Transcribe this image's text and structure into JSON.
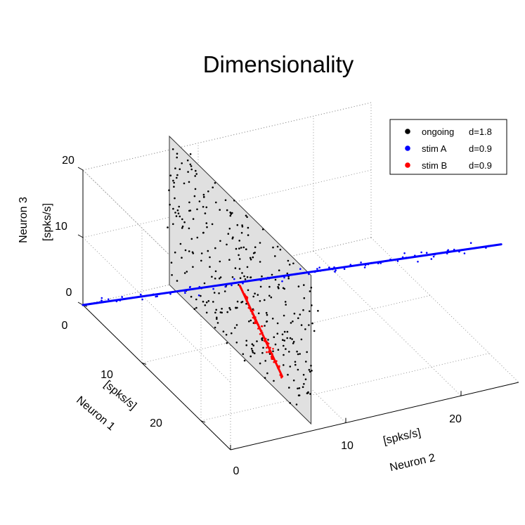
{
  "chart_data": {
    "type": "scatter",
    "title": "Dimensionality",
    "axes": {
      "x": {
        "label": "Neuron 1",
        "unit": "[spks/s]",
        "range": [
          0,
          25
        ],
        "ticks": [
          0,
          10,
          20
        ],
        "tick_labels": [
          "0",
          "10",
          "20"
        ]
      },
      "y": {
        "label": "Neuron 2",
        "unit": "[spks/s]",
        "range": [
          0,
          25
        ],
        "ticks": [
          0,
          10,
          20
        ],
        "tick_labels": [
          "0",
          "10",
          "20"
        ]
      },
      "z": {
        "label": "Neuron 3",
        "unit": "[spks/s]",
        "range": [
          0,
          20
        ],
        "ticks": [
          0,
          10,
          20
        ],
        "tick_labels": [
          "0",
          "10",
          "20"
        ]
      }
    },
    "grid": true,
    "legend_position": "top-right",
    "series": [
      {
        "name": "ongoing",
        "label": "ongoing",
        "dimensionality": "d=1.8",
        "color": "#000000",
        "n_points": 330,
        "plane": {
          "x_range": [
            0,
            24
          ],
          "y": 7.5,
          "z_range": [
            0,
            22
          ]
        }
      },
      {
        "name": "stim A",
        "label": "stim A",
        "dimensionality": "d=0.9",
        "color": "#0000ff",
        "n_points": 75,
        "line": {
          "start": [
            0,
            0,
            0
          ],
          "end": [
            24,
            24,
            20
          ]
        }
      },
      {
        "name": "stim B",
        "label": "stim B",
        "dimensionality": "d=0.9",
        "color": "#ff0000",
        "n_points": 65,
        "line": {
          "start": [
            9,
            9,
            7
          ],
          "end": [
            24,
            5,
            8
          ]
        }
      }
    ]
  }
}
